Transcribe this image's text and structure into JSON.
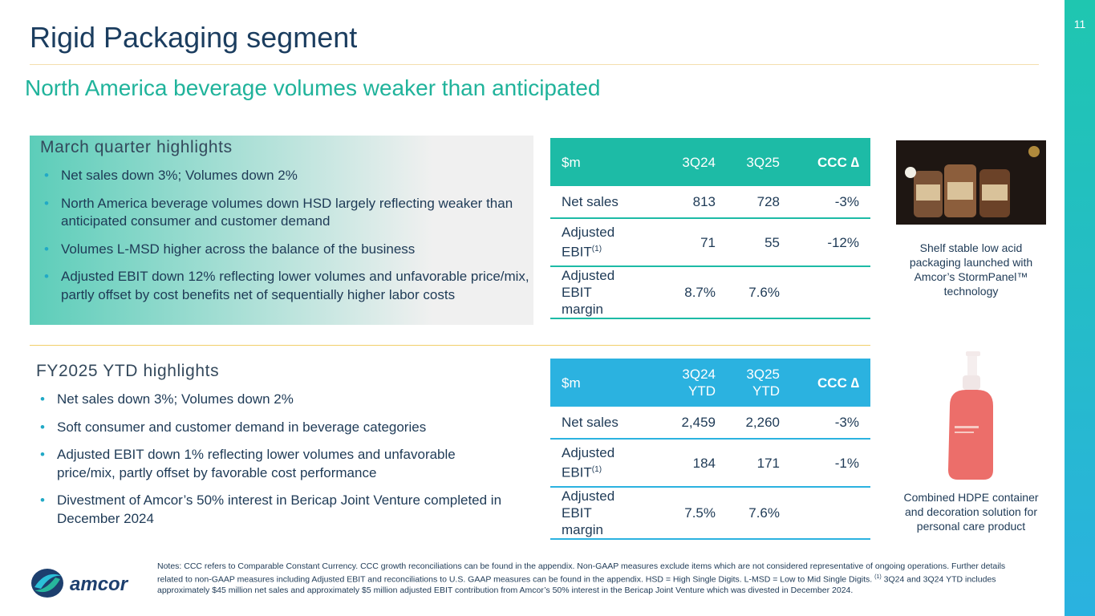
{
  "page_number": "11",
  "title": "Rigid Packaging segment",
  "subtitle": "North America beverage volumes weaker than anticipated",
  "quarter": {
    "heading": "March quarter highlights",
    "bullets": [
      "Net sales down 3%; Volumes down 2%",
      "North America beverage volumes down HSD largely reflecting weaker than anticipated consumer and customer demand",
      "Volumes L-MSD higher across the balance of the business",
      "Adjusted EBIT down 12% reflecting lower volumes and unfavorable price/mix, partly offset by cost benefits net of sequentially higher labor costs"
    ]
  },
  "quarter_table": {
    "header": [
      "$m",
      "3Q24",
      "3Q25",
      "CCC ∆"
    ],
    "rows": [
      {
        "label": "Net sales",
        "cells": [
          "813",
          "728",
          "-3%"
        ]
      },
      {
        "label": "Adjusted EBIT",
        "footnote": "(1)",
        "cells": [
          "71",
          "55",
          "-12%"
        ]
      },
      {
        "label": "Adjusted EBIT margin",
        "cells": [
          "8.7%",
          "7.6%"
        ]
      }
    ]
  },
  "ytd": {
    "heading": "FY2025 YTD highlights",
    "bullets": [
      "Net sales down 3%; Volumes down 2%",
      "Soft consumer and customer demand in beverage categories",
      "Adjusted EBIT down 1% reflecting lower volumes and unfavorable price/mix, partly offset by favorable cost performance",
      "Divestment of Amcor’s 50% interest in Bericap Joint Venture completed in December 2024"
    ]
  },
  "ytd_table": {
    "header": [
      "$m",
      "3Q24 YTD",
      "3Q25 YTD",
      "CCC ∆"
    ],
    "rows": [
      {
        "label": "Net sales",
        "cells": [
          "2,459",
          "2,260",
          "-3%"
        ]
      },
      {
        "label": "Adjusted EBIT",
        "footnote": "(1)",
        "cells": [
          "184",
          "171",
          "-1%"
        ]
      },
      {
        "label": "Adjusted EBIT margin",
        "cells": [
          "7.5%",
          "7.6%"
        ]
      }
    ]
  },
  "images": [
    {
      "caption": "Shelf stable low acid packaging launched with Amcor’s StormPanel™ technology"
    },
    {
      "caption": "Combined HDPE container and decoration solution for personal care product"
    }
  ],
  "logo": "amcor",
  "notes": {
    "text": "Notes:  CCC refers to Comparable Constant Currency.  CCC growth reconciliations can be found in the appendix. Non-GAAP measures exclude items which are not considered representative of ongoing operations.  Further details related to non-GAAP measures including Adjusted EBIT and reconciliations to U.S. GAAP measures can be found in the appendix.  HSD = High Single Digits. L-MSD = Low to Mid Single Digits.",
    "footnote_marker": "(1)",
    "footnote": "3Q24 and 3Q24 YTD includes approximately $45 million net sales and approximately $5 million adjusted EBIT contribution from Amcor’s 50% interest in the Bericap Joint Venture which was divested in December 2024."
  }
}
